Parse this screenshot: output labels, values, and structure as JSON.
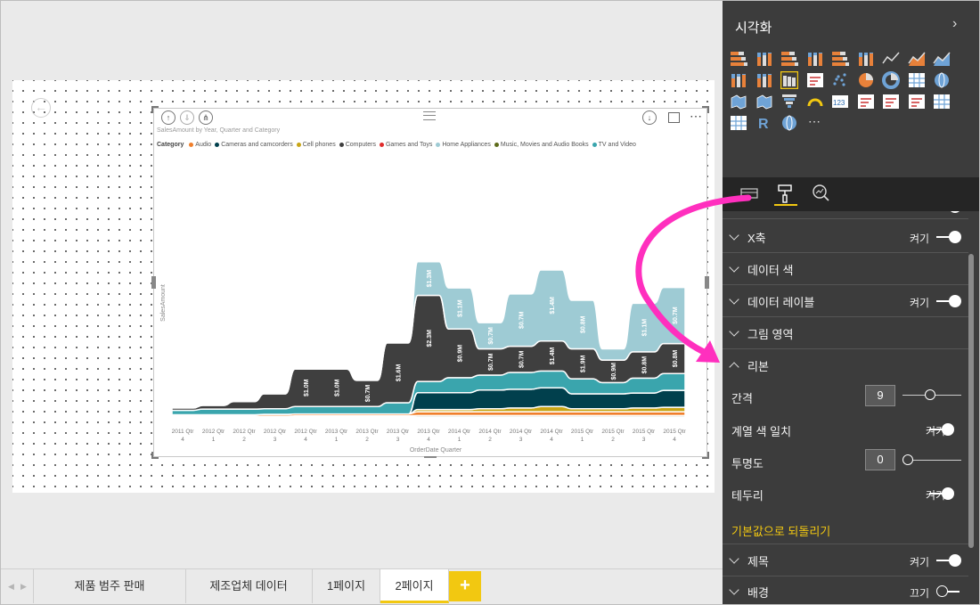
{
  "canvas": {
    "visual": {
      "title": "SalesAmount by Year, Quarter and Category",
      "legend_title": "Category",
      "legend": [
        {
          "name": "Audio",
          "color": "#f07f2b"
        },
        {
          "name": "Cameras and camcorders",
          "color": "#01404d"
        },
        {
          "name": "Cell phones",
          "color": "#c8a516"
        },
        {
          "name": "Computers",
          "color": "#3f3f3f"
        },
        {
          "name": "Games and Toys",
          "color": "#e02c2c"
        },
        {
          "name": "Home Appliances",
          "color": "#9ecbd4"
        },
        {
          "name": "Music, Movies and Audio Books",
          "color": "#5e6b1a"
        },
        {
          "name": "TV and Video",
          "color": "#3aa5ad"
        }
      ],
      "more_label": "⋯"
    }
  },
  "chart_data": {
    "type": "area",
    "subtype": "ribbon",
    "title": "SalesAmount by Year, Quarter and Category",
    "xlabel": "OrderDate Quarter",
    "ylabel": "SalesAmount",
    "categories": [
      [
        "2011 Qtr",
        "4"
      ],
      [
        "2012 Qtr",
        "1"
      ],
      [
        "2012 Qtr",
        "2"
      ],
      [
        "2012 Qtr",
        "3"
      ],
      [
        "2012 Qtr",
        "4"
      ],
      [
        "2013 Qtr",
        "1"
      ],
      [
        "2013 Qtr",
        "2"
      ],
      [
        "2013 Qtr",
        "3"
      ],
      [
        "2013 Qtr",
        "4"
      ],
      [
        "2014 Qtr",
        "1"
      ],
      [
        "2014 Qtr",
        "2"
      ],
      [
        "2014 Qtr",
        "3"
      ],
      [
        "2014 Qtr",
        "4"
      ],
      [
        "2015 Qtr",
        "1"
      ],
      [
        "2015 Qtr",
        "2"
      ],
      [
        "2015 Qtr",
        "3"
      ],
      [
        "2015 Qtr",
        "4"
      ]
    ],
    "series": [
      {
        "name": "Music, Movies and Audio Books",
        "values": [
          0.02,
          0.02,
          0.02,
          0.02,
          0.03,
          0.03,
          0.03,
          0.03,
          0.04,
          0.04,
          0.04,
          0.04,
          0.04,
          0.04,
          0.04,
          0.04,
          0.04
        ]
      },
      {
        "name": "Audio",
        "values": [
          0.04,
          0.04,
          0.04,
          0.05,
          0.05,
          0.05,
          0.05,
          0.05,
          0.1,
          0.1,
          0.1,
          0.1,
          0.1,
          0.1,
          0.1,
          0.1,
          0.1
        ]
      },
      {
        "name": "Cell phones",
        "values": [
          0.0,
          0.0,
          0.0,
          0.0,
          0.0,
          0.0,
          0.0,
          0.0,
          0.06,
          0.06,
          0.08,
          0.1,
          0.14,
          0.08,
          0.08,
          0.1,
          0.12
        ]
      },
      {
        "name": "Cameras and camcorders",
        "values": [
          0.0,
          0.0,
          0.0,
          0.0,
          0.0,
          0.0,
          0.0,
          0.0,
          0.45,
          0.45,
          0.5,
          0.5,
          0.5,
          0.4,
          0.4,
          0.4,
          0.45
        ]
      },
      {
        "name": "TV and Video",
        "values": [
          0.12,
          0.15,
          0.15,
          0.15,
          0.2,
          0.2,
          0.2,
          0.3,
          0.3,
          0.4,
          0.4,
          0.45,
          0.45,
          0.4,
          0.3,
          0.4,
          0.45
        ]
      },
      {
        "name": "Computers",
        "values": [
          0.06,
          0.1,
          0.2,
          0.4,
          1.0,
          1.0,
          0.7,
          1.6,
          2.3,
          1.3,
          0.7,
          0.7,
          0.8,
          0.8,
          0.6,
          0.7,
          0.8
        ]
      },
      {
        "name": "Home Appliances",
        "values": [
          0.0,
          0.0,
          0.0,
          0.0,
          0.0,
          0.0,
          0.0,
          0.0,
          0.9,
          1.1,
          0.7,
          1.4,
          1.9,
          1.3,
          0.3,
          1.3,
          1.5
        ]
      }
    ],
    "data_labels": [
      "$1.0M",
      "$1.0M",
      "$0.7M",
      "$1.6M",
      "$2.3M",
      "$1.3M",
      "$0.9M",
      "$1.1M",
      "$0.7M",
      "$0.7M",
      "$0.7M",
      "$0.7M",
      "$1.4M",
      "$1.4M",
      "$1.9M",
      "$0.8M",
      "$0.9M",
      "$0.8M",
      "$1.1M",
      "$0.8M",
      "$0.7M",
      "$1.3M",
      "$1.5M",
      "$0.8M"
    ],
    "grid": false,
    "legend_position": "top-left"
  },
  "tabs": {
    "items": [
      "제품 범주 판매",
      "제조업체 데이터",
      "1페이지",
      "2페이지"
    ],
    "active": "2페이지",
    "add_label": "+"
  },
  "pane": {
    "title": "시각화",
    "collapse_icon": "›",
    "visual_icons": [
      "stacked-bar-icon",
      "stacked-column-icon",
      "clustered-bar-icon",
      "clustered-column-icon",
      "100-bar-icon",
      "100-column-icon",
      "line-chart-icon",
      "area-chart-icon",
      "stacked-area-icon",
      "line-column-icon",
      "line-clustered-column-icon",
      "ribbon-chart-icon",
      "waterfall-icon",
      "scatter-icon",
      "pie-icon",
      "donut-icon",
      "treemap-icon",
      "map-icon",
      "filled-map-icon",
      "shape-map-icon",
      "funnel-icon",
      "gauge-icon",
      "card-icon",
      "multirow-card-icon",
      "kpi-icon",
      "slicer-icon",
      "table-icon",
      "matrix-icon",
      "r-visual-icon",
      "globe-icon",
      "more-icon"
    ],
    "r_label": "R",
    "card_label": "123",
    "format": {
      "sections": [
        {
          "label": "X축",
          "toggle_label": "켜기",
          "on": true
        },
        {
          "label": "데이터 색"
        },
        {
          "label": "데이터 레이블",
          "toggle_label": "켜기",
          "on": true
        },
        {
          "label": "그림 영역"
        },
        {
          "label": "리본",
          "expanded": true
        }
      ],
      "ribbon": {
        "spacing_label": "간격",
        "spacing_value": "9",
        "spacing_slider": 0.45,
        "match_color_label": "계열 색 일치",
        "match_color_toggle": "켜기",
        "transparency_label": "투명도",
        "transparency_value": "0",
        "transparency_slider": 0.0,
        "border_label": "테두리",
        "border_toggle": "켜기",
        "reset_label": "기본값으로 되돌리기"
      },
      "after_sections": [
        {
          "label": "제목",
          "toggle_label": "켜기",
          "on": true
        },
        {
          "label": "배경",
          "toggle_label": "끄기",
          "on": false
        }
      ]
    }
  },
  "colors": {
    "accent": "#f2c811",
    "annotation_arrow": "#ff2fbe"
  }
}
